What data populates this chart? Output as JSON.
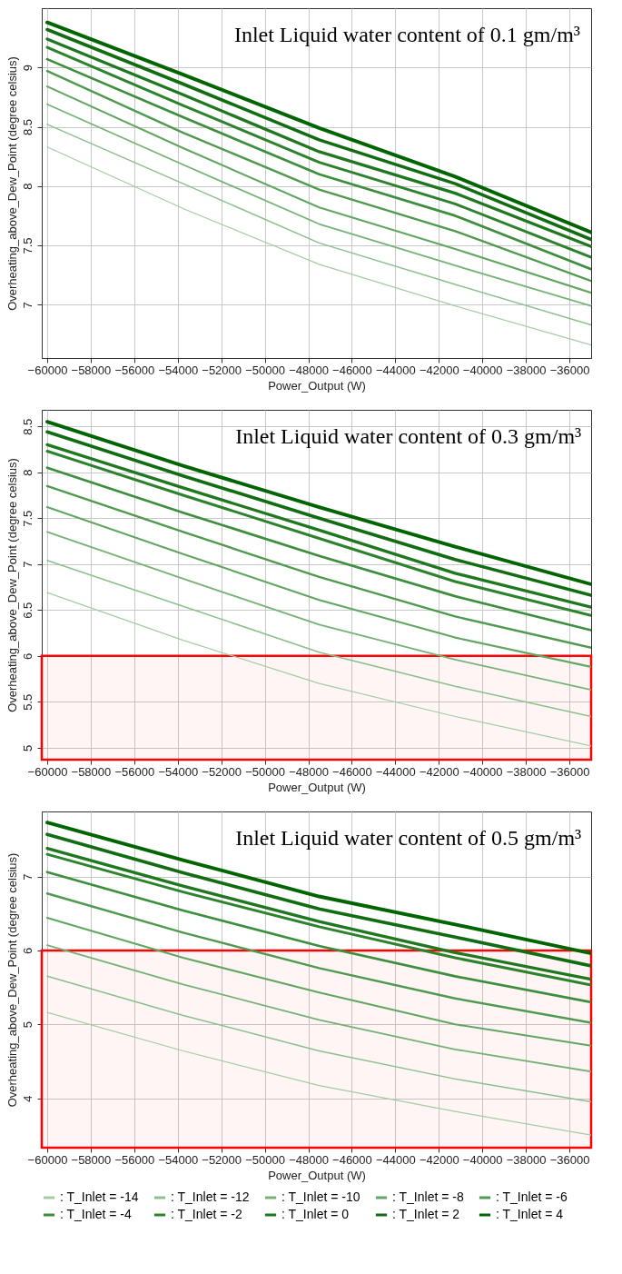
{
  "chart_data": [
    {
      "type": "line",
      "title": "Inlet Liquid water content of 0.1 gm/m³",
      "xlabel": "Power_Output (W)",
      "ylabel": "Overheating_above_Dew_Point (degree celsius)",
      "x": [
        -60000,
        -53750,
        -47500,
        -41250,
        -35000
      ],
      "xlim": [
        -60250,
        -35000
      ],
      "ylim": [
        6.55,
        9.5
      ],
      "xticks": [
        -60000,
        -58000,
        -56000,
        -54000,
        -52000,
        -50000,
        -48000,
        -46000,
        -44000,
        -42000,
        -40000,
        -38000,
        -36000
      ],
      "yticks": [
        7,
        7.5,
        8,
        8.5,
        9
      ],
      "grid": true,
      "series": [
        {
          "color": "#a5cca5",
          "values": [
            8.33,
            7.81,
            7.34,
            6.99,
            6.66
          ]
        },
        {
          "color": "#8dbf8d",
          "values": [
            8.52,
            8.02,
            7.52,
            7.17,
            6.83
          ]
        },
        {
          "color": "#76b276",
          "values": [
            8.69,
            8.18,
            7.68,
            7.33,
            6.99
          ]
        },
        {
          "color": "#62a662",
          "values": [
            8.84,
            8.32,
            7.82,
            7.47,
            7.1
          ]
        },
        {
          "color": "#4f9a4f",
          "values": [
            8.97,
            8.45,
            7.97,
            7.62,
            7.2
          ]
        },
        {
          "color": "#3d8e3d",
          "values": [
            9.07,
            8.58,
            8.1,
            7.75,
            7.3
          ]
        },
        {
          "color": "#2d822d",
          "values": [
            9.17,
            8.68,
            8.2,
            7.85,
            7.4
          ]
        },
        {
          "color": "#1f771f",
          "values": [
            9.24,
            8.77,
            8.29,
            7.94,
            7.49
          ]
        },
        {
          "color": "#126c12",
          "values": [
            9.32,
            8.86,
            8.39,
            8.02,
            7.55
          ]
        },
        {
          "color": "#006400",
          "values": [
            9.38,
            8.94,
            8.49,
            8.08,
            7.61
          ]
        }
      ]
    },
    {
      "type": "line",
      "title": "Inlet Liquid water content of 0.3 gm/m³",
      "xlabel": "Power_Output (W)",
      "ylabel": "Overheating_above_Dew_Point (degree celsius)",
      "x": [
        -60000,
        -53750,
        -47500,
        -41250,
        -35000
      ],
      "xlim": [
        -60250,
        -35000
      ],
      "ylim": [
        4.87,
        8.68
      ],
      "xticks": [
        -60000,
        -58000,
        -56000,
        -54000,
        -52000,
        -50000,
        -48000,
        -46000,
        -44000,
        -42000,
        -40000,
        -38000,
        -36000
      ],
      "yticks": [
        5,
        5.5,
        6,
        6.5,
        7,
        7.5,
        8,
        8.5
      ],
      "grid": true,
      "bands": [
        {
          "axis": "y",
          "from": 4.87,
          "to": 6,
          "color": "#ff0000"
        }
      ],
      "series": [
        {
          "color": "#a5cca5",
          "values": [
            6.69,
            6.17,
            5.7,
            5.34,
            5.02
          ]
        },
        {
          "color": "#8dbf8d",
          "values": [
            7.04,
            6.54,
            6.04,
            5.67,
            5.34
          ]
        },
        {
          "color": "#76b276",
          "values": [
            7.35,
            6.84,
            6.34,
            5.96,
            5.63
          ]
        },
        {
          "color": "#62a662",
          "values": [
            7.62,
            7.11,
            6.61,
            6.2,
            5.88
          ]
        },
        {
          "color": "#4f9a4f",
          "values": [
            7.85,
            7.35,
            6.86,
            6.43,
            6.09
          ]
        },
        {
          "color": "#3d8e3d",
          "values": [
            8.05,
            7.56,
            7.09,
            6.65,
            6.28
          ]
        },
        {
          "color": "#2d822d",
          "values": [
            8.23,
            7.75,
            7.28,
            6.81,
            6.44
          ]
        },
        {
          "color": "#1f771f",
          "values": [
            8.3,
            7.83,
            7.37,
            6.9,
            6.53
          ]
        },
        {
          "color": "#126c12",
          "values": [
            8.44,
            7.96,
            7.5,
            7.05,
            6.66
          ]
        },
        {
          "color": "#006400",
          "values": [
            8.55,
            8.07,
            7.62,
            7.19,
            6.78
          ]
        }
      ]
    },
    {
      "type": "line",
      "title": "Inlet Liquid water content of 0.5 gm/m³",
      "xlabel": "Power_Output (W)",
      "ylabel": "Overheating_above_Dew_Point (degree celsius)",
      "x": [
        -60000,
        -53750,
        -47500,
        -41250,
        -35000
      ],
      "xlim": [
        -60250,
        -35000
      ],
      "ylim": [
        3.33,
        7.88
      ],
      "xticks": [
        -60000,
        -58000,
        -56000,
        -54000,
        -52000,
        -50000,
        -48000,
        -46000,
        -44000,
        -42000,
        -40000,
        -38000,
        -36000
      ],
      "yticks": [
        4,
        5,
        6,
        7
      ],
      "grid": true,
      "legend": "bottom",
      "bands": [
        {
          "axis": "y",
          "from": 3.33,
          "to": 6,
          "color": "#ff0000"
        }
      ],
      "series": [
        {
          "name": ": T_Inlet = -14",
          "color": "#a5cca5",
          "values": [
            5.16,
            4.64,
            4.17,
            3.82,
            3.5
          ]
        },
        {
          "name": ": T_Inlet = -12",
          "color": "#8dbf8d",
          "values": [
            5.65,
            5.12,
            4.64,
            4.26,
            3.95
          ]
        },
        {
          "name": ": T_Inlet = -10",
          "color": "#76b276",
          "values": [
            6.07,
            5.54,
            5.06,
            4.66,
            4.36
          ]
        },
        {
          "name": ": T_Inlet = -8",
          "color": "#62a662",
          "values": [
            6.44,
            5.9,
            5.43,
            5.0,
            4.71
          ]
        },
        {
          "name": ": T_Inlet = -6",
          "color": "#4f9a4f",
          "values": [
            6.77,
            6.24,
            5.76,
            5.35,
            5.02
          ]
        },
        {
          "name": ": T_Inlet = -4",
          "color": "#3d8e3d",
          "values": [
            7.06,
            6.54,
            6.06,
            5.65,
            5.3
          ]
        },
        {
          "name": ": T_Inlet = -2",
          "color": "#2d822d",
          "values": [
            7.3,
            6.79,
            6.32,
            5.9,
            5.53
          ]
        },
        {
          "name": ": T_Inlet = 0",
          "color": "#1f771f",
          "values": [
            7.38,
            6.87,
            6.39,
            5.97,
            5.61
          ]
        },
        {
          "name": ": T_Inlet = 2",
          "color": "#126c12",
          "values": [
            7.57,
            7.05,
            6.56,
            6.18,
            5.79
          ]
        },
        {
          "name": ": T_Inlet = 4",
          "color": "#006400",
          "values": [
            7.73,
            7.22,
            6.73,
            6.35,
            5.96
          ]
        }
      ]
    }
  ]
}
